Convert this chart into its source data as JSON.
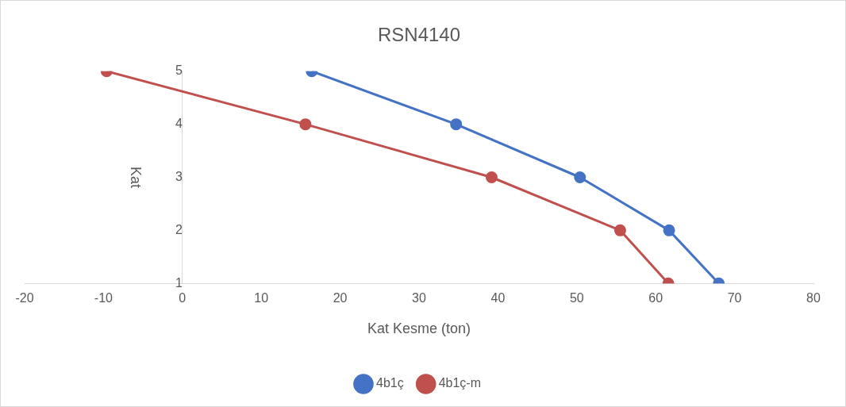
{
  "chart_data": {
    "type": "line",
    "title": "RSN4140",
    "xlabel": "Kat Kesme (ton)",
    "ylabel": "Kat",
    "series": [
      {
        "name": "4b1ç",
        "color": "#4472c4",
        "x": [
          16.4,
          34.7,
          50.4,
          61.7,
          68.0
        ],
        "values": [
          5,
          4,
          3,
          2,
          1
        ]
      },
      {
        "name": "4b1ç-m",
        "color": "#c0504d",
        "x": [
          -9.6,
          15.6,
          39.2,
          55.5,
          61.6
        ],
        "values": [
          5,
          4,
          3,
          2,
          1
        ]
      }
    ],
    "xlim": [
      -20,
      80
    ],
    "xticks": [
      -20,
      -10,
      0,
      10,
      20,
      30,
      40,
      50,
      60,
      70,
      80
    ],
    "ylim": [
      1,
      5
    ],
    "yticks": [
      1,
      2,
      3,
      4,
      5
    ],
    "grid": false,
    "legend": "bottom",
    "marker": "circle",
    "line_style": "solid"
  }
}
